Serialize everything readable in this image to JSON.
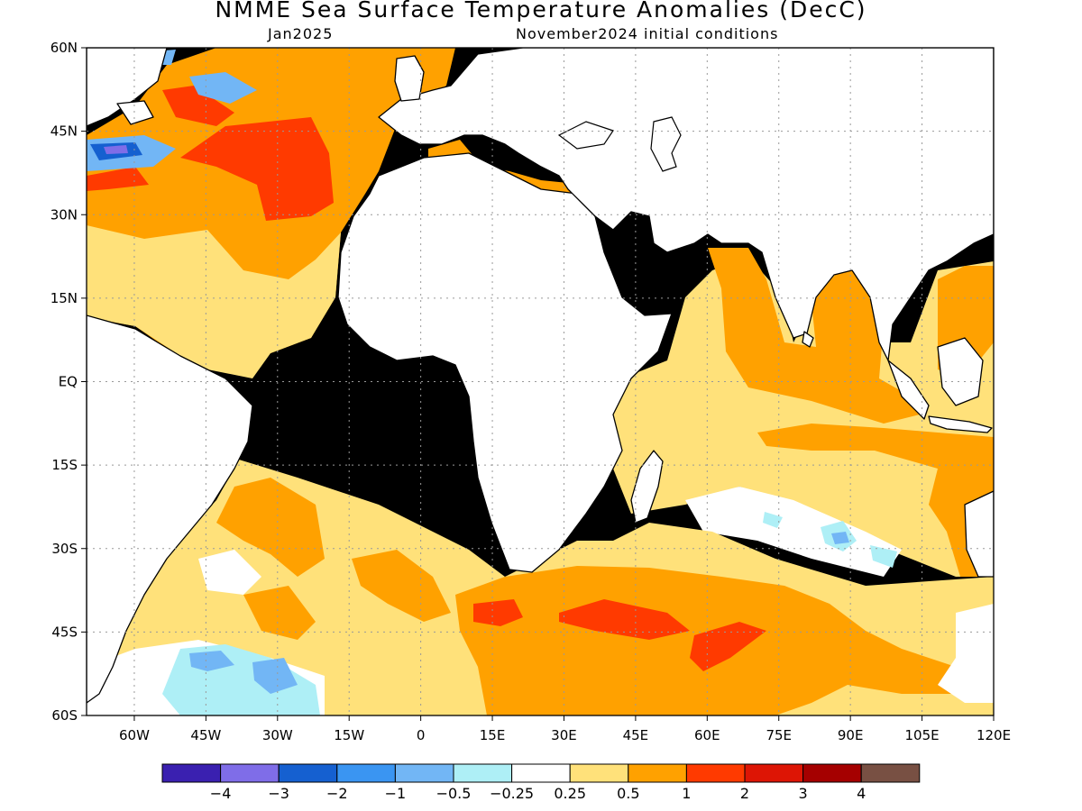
{
  "title": "NMME Sea Surface Temperature Anomalies (DecC)",
  "target_month": "Jan2025",
  "initial_conditions": "November2024 initial conditions",
  "map": {
    "lon_range": [
      -70,
      120
    ],
    "lat_range": [
      -60,
      60
    ],
    "lon_ticks": [
      {
        "value": -60,
        "label": "60W"
      },
      {
        "value": -45,
        "label": "45W"
      },
      {
        "value": -30,
        "label": "30W"
      },
      {
        "value": -15,
        "label": "15W"
      },
      {
        "value": 0,
        "label": "0"
      },
      {
        "value": 15,
        "label": "15E"
      },
      {
        "value": 30,
        "label": "30E"
      },
      {
        "value": 45,
        "label": "45E"
      },
      {
        "value": 60,
        "label": "60E"
      },
      {
        "value": 75,
        "label": "75E"
      },
      {
        "value": 90,
        "label": "90E"
      },
      {
        "value": 105,
        "label": "105E"
      },
      {
        "value": 120,
        "label": "120E"
      }
    ],
    "lat_ticks": [
      {
        "value": 60,
        "label": "60N"
      },
      {
        "value": 45,
        "label": "45N"
      },
      {
        "value": 30,
        "label": "30N"
      },
      {
        "value": 15,
        "label": "15N"
      },
      {
        "value": 0,
        "label": "EQ"
      },
      {
        "value": -15,
        "label": "15S"
      },
      {
        "value": -30,
        "label": "30S"
      },
      {
        "value": -45,
        "label": "45S"
      },
      {
        "value": -60,
        "label": "60S"
      }
    ],
    "grid": true
  },
  "colorbar": {
    "colors": [
      "#3a20b0",
      "#7f6de8",
      "#1560d0",
      "#3a95f2",
      "#72b6f5",
      "#aeeff6",
      "#ffffff",
      "#ffe17a",
      "#ffa100",
      "#ff3a00",
      "#dd1505",
      "#a50000",
      "#785043"
    ],
    "labels": [
      "−4",
      "−3",
      "−2",
      "−1",
      "−0.5",
      "−0.25",
      "0.25",
      "0.5",
      "1",
      "2",
      "3",
      "4"
    ]
  },
  "land_color": "#ffffff",
  "coast_color": "#000000"
}
